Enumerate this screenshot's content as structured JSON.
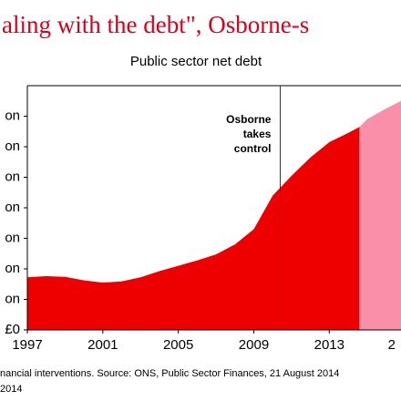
{
  "chart_data": {
    "type": "area",
    "title": "aling with the debt\", Osborne-s",
    "subtitle": "Public sector net debt",
    "series": [
      {
        "color": "#ee0000",
        "x": [
          1997,
          1998,
          1999,
          2000,
          2001,
          2002,
          2003,
          2004,
          2005,
          2006,
          2007,
          2008,
          2009,
          2010,
          2011,
          2012,
          2013,
          2014,
          2014.6
        ],
        "values": [
          345,
          352,
          348,
          325,
          310,
          318,
          345,
          385,
          420,
          455,
          495,
          560,
          660,
          880,
          1010,
          1130,
          1230,
          1290,
          1330
        ]
      },
      {
        "color": "#f98fa8",
        "x": [
          2014.6,
          2015,
          2016,
          2016.8
        ],
        "values": [
          1330,
          1380,
          1450,
          1500
        ]
      }
    ],
    "xlim": [
      1997,
      2016.8
    ],
    "xticks": [
      1997,
      2001,
      2005,
      2009,
      2013,
      {
        "value": 2017,
        "label": "2"
      }
    ],
    "ylim": [
      0,
      1600
    ],
    "yticks": [
      {
        "value": 0,
        "label": "£0"
      },
      {
        "value": 200,
        "label": "on"
      },
      {
        "value": 400,
        "label": "on"
      },
      {
        "value": 600,
        "label": "on"
      },
      {
        "value": 800,
        "label": "on"
      },
      {
        "value": 1000,
        "label": "on"
      },
      {
        "value": 1200,
        "label": "on"
      },
      {
        "value": 1400,
        "label": "on"
      }
    ],
    "annotation": {
      "lines": [
        "Osborne",
        "takes",
        "control"
      ],
      "x": 2010.4
    },
    "footnotes": [
      "nancial interventions. Source: ONS, Public Sector Finances, 21 August 2014",
      "2014"
    ]
  }
}
